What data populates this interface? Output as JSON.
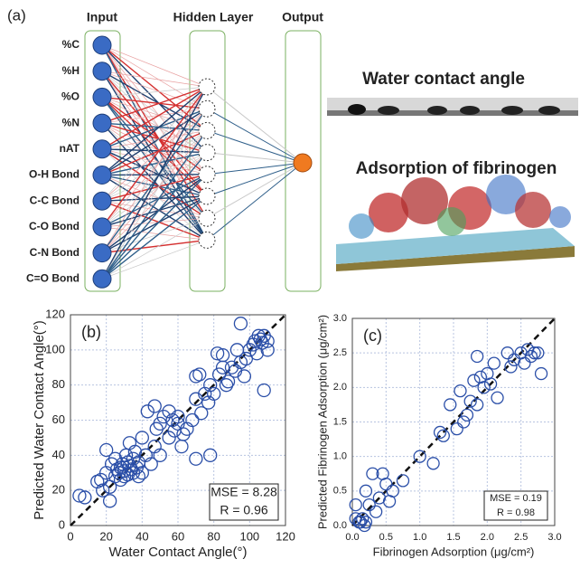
{
  "panel_a": {
    "label": "(a)",
    "input_title": "Input",
    "hidden_title": "Hidden Layer",
    "output_title": "Output",
    "inputs": [
      "%C",
      "%H",
      "%O",
      "%N",
      "nAT",
      "O-H Bond",
      "C-C Bond",
      "C-O Bond",
      "C-N Bond",
      "C=O Bond"
    ],
    "image_1_title": "Water contact angle",
    "image_2_title": "Adsorption of fibrinogen"
  },
  "chart_data": [
    {
      "type": "scatter",
      "label": "(b)",
      "x_label": "Water Contact Angle(°)",
      "y_label": "Predicted Water Contact Angle(°)",
      "color": "#2b4fa8",
      "xlim": [
        0,
        120
      ],
      "ylim": [
        0,
        120
      ],
      "xticks": [
        0,
        20,
        40,
        60,
        80,
        100,
        120
      ],
      "yticks": [
        0,
        20,
        40,
        60,
        80,
        100,
        120
      ],
      "grid": true,
      "annotations": [
        "MSE = 8.28",
        "R = 0.96"
      ],
      "x": [
        5,
        8,
        15,
        17,
        18,
        20,
        20,
        22,
        22,
        23,
        25,
        25,
        26,
        27,
        28,
        28,
        29,
        30,
        30,
        31,
        32,
        32,
        33,
        33,
        34,
        35,
        35,
        36,
        37,
        38,
        38,
        40,
        40,
        42,
        43,
        45,
        47,
        48,
        50,
        50,
        52,
        55,
        55,
        57,
        58,
        60,
        62,
        63,
        65,
        68,
        70,
        70,
        70,
        72,
        73,
        75,
        77,
        78,
        80,
        82,
        83,
        85,
        87,
        88,
        90,
        92,
        93,
        95,
        97,
        98,
        100,
        102,
        103,
        104,
        105,
        106,
        107,
        108,
        108,
        110,
        110,
        47,
        60,
        78,
        85,
        95
      ],
      "values": [
        17,
        16,
        25,
        26,
        20,
        43,
        30,
        14,
        22,
        35,
        38,
        28,
        32,
        30,
        26,
        33,
        35,
        31,
        28,
        40,
        29,
        36,
        34,
        47,
        32,
        30,
        38,
        42,
        33,
        28,
        36,
        50,
        30,
        40,
        65,
        35,
        45,
        55,
        58,
        40,
        62,
        50,
        65,
        60,
        54,
        62,
        45,
        52,
        55,
        60,
        85,
        72,
        38,
        86,
        64,
        75,
        70,
        80,
        75,
        98,
        86,
        90,
        80,
        82,
        90,
        88,
        100,
        93,
        85,
        95,
        100,
        103,
        105,
        98,
        108,
        106,
        104,
        77,
        108,
        105,
        100,
        68,
        58,
        40,
        97,
        115
      ]
    },
    {
      "type": "scatter",
      "label": "(c)",
      "x_label": "Fibrinogen Adsorption (μg/cm²)",
      "y_label": "Predicted Fibrinogen Adsorption (μg/cm²)",
      "color": "#2b4fa8",
      "xlim": [
        0,
        3
      ],
      "ylim": [
        0,
        3
      ],
      "xticks": [
        {
          "value": 0,
          "label": "0.0"
        },
        0.5,
        {
          "value": 1,
          "label": "1.0"
        },
        1.5,
        {
          "value": 2,
          "label": "2.0"
        },
        2.5,
        {
          "value": 3,
          "label": "3.0"
        }
      ],
      "yticks": [
        {
          "value": 0,
          "label": "0.0"
        },
        0.5,
        {
          "value": 1,
          "label": "1.0"
        },
        1.5,
        {
          "value": 2,
          "label": "2.0"
        },
        2.5,
        {
          "value": 3,
          "label": "3.0"
        }
      ],
      "grid": true,
      "annotations": [
        "MSE = 0.19",
        "R = 0.98"
      ],
      "x": [
        0.05,
        0.05,
        0.1,
        0.12,
        0.15,
        0.18,
        0.2,
        0.2,
        0.25,
        0.3,
        0.35,
        0.4,
        0.45,
        0.5,
        0.55,
        0.6,
        0.75,
        1.0,
        1.2,
        1.3,
        1.35,
        1.45,
        1.6,
        1.65,
        1.7,
        1.75,
        1.8,
        1.85,
        1.85,
        1.9,
        1.95,
        2.0,
        2.05,
        2.1,
        2.15,
        2.3,
        2.35,
        2.4,
        2.5,
        2.55,
        2.6,
        2.65,
        2.7,
        2.75,
        2.8,
        1.55
      ],
      "values": [
        0.3,
        0.1,
        0.05,
        0.05,
        0.1,
        0.0,
        0.05,
        0.5,
        0.3,
        0.75,
        0.2,
        0.4,
        0.75,
        0.6,
        0.35,
        0.5,
        0.65,
        1.0,
        0.9,
        1.35,
        1.3,
        1.75,
        1.95,
        1.5,
        1.6,
        1.8,
        2.1,
        1.75,
        2.45,
        2.15,
        2.0,
        2.2,
        2.05,
        2.35,
        1.85,
        2.5,
        2.3,
        2.4,
        2.5,
        2.35,
        2.55,
        2.45,
        2.5,
        2.5,
        2.2,
        1.4
      ]
    }
  ]
}
